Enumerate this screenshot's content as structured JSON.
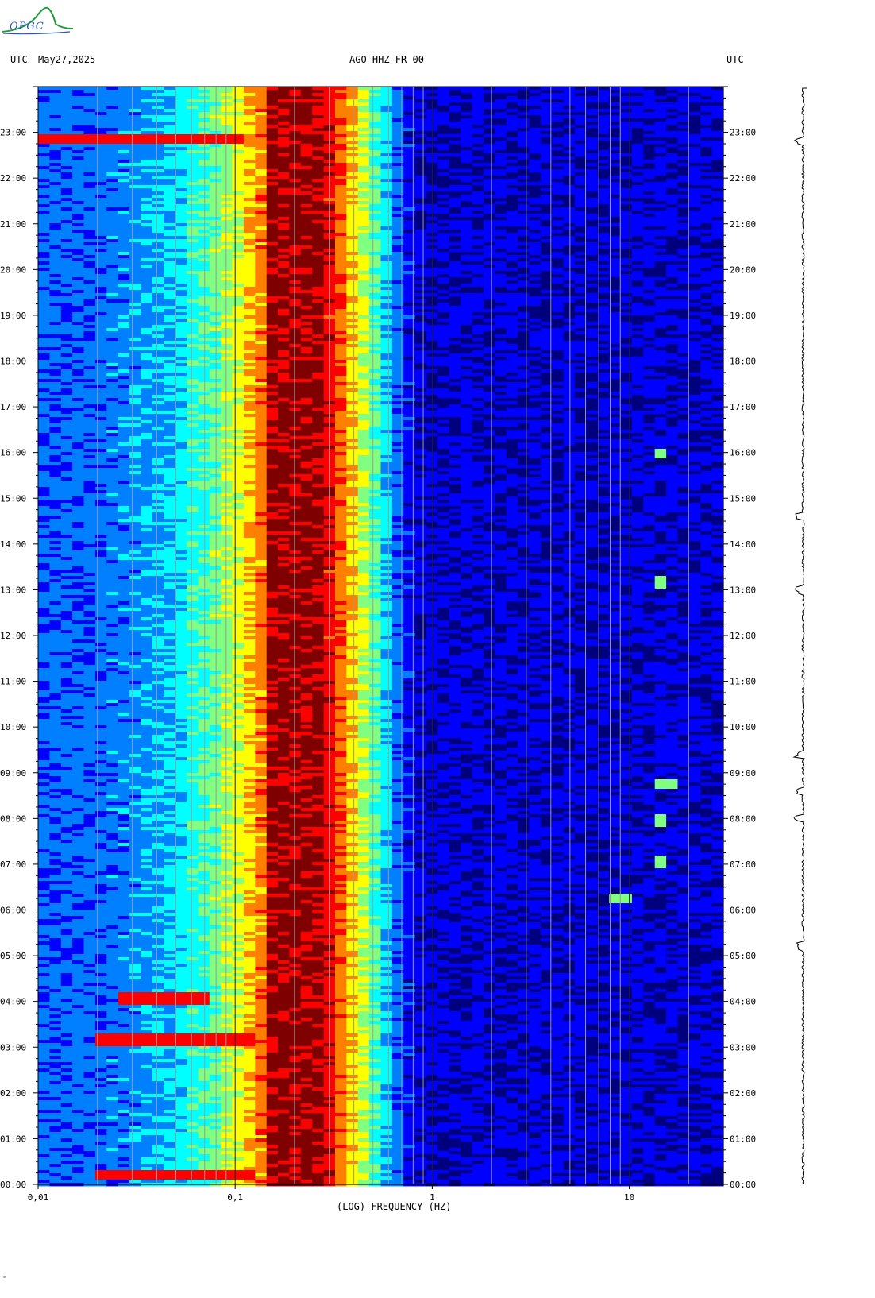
{
  "logo": {
    "text": "OPGC",
    "icon": "opgc-volcano-logo-icon",
    "colors": {
      "green": "#1f9a3a",
      "blue": "#2a57b0"
    }
  },
  "header": {
    "left_utc": "UTC",
    "date": "May27,2025",
    "station": "AGO HHZ FR 00",
    "right_utc": "UTC"
  },
  "footer_mark": "ᵃ",
  "chart_data": {
    "type": "heatmap",
    "title": "AGO HHZ FR 00",
    "xlabel": "(LOG) FREQUENCY (HZ)",
    "x_scale": "log",
    "xlim": [
      0.01,
      30
    ],
    "x_ticks": [
      {
        "value": 0.01,
        "label": "0,01"
      },
      {
        "value": 0.1,
        "label": "0,1"
      },
      {
        "value": 1,
        "label": "1"
      },
      {
        "value": 10,
        "label": "10"
      }
    ],
    "ylim_hours": [
      0,
      24
    ],
    "y_ticks": [
      "00:00",
      "01:00",
      "02:00",
      "03:00",
      "04:00",
      "05:00",
      "06:00",
      "07:00",
      "08:00",
      "09:00",
      "10:00",
      "11:00",
      "12:00",
      "13:00",
      "14:00",
      "15:00",
      "16:00",
      "17:00",
      "18:00",
      "19:00",
      "20:00",
      "21:00",
      "22:00",
      "23:00"
    ],
    "grid": true,
    "colormap": [
      "#00007f",
      "#0000ff",
      "#0080ff",
      "#00ffff",
      "#80ff80",
      "#ffff00",
      "#ff8000",
      "#ff0000",
      "#7f0000"
    ],
    "microseism_peak_hz": [
      0.14,
      0.28
    ],
    "events": [
      {
        "hour": 0.25,
        "band_hz": [
          0.02,
          0.12
        ],
        "label": "event"
      },
      {
        "hour": 3.2,
        "band_hz": [
          0.02,
          0.12
        ],
        "label": "event"
      },
      {
        "hour": 4.1,
        "band_hz": [
          0.025,
          0.07
        ],
        "label": "event"
      },
      {
        "hour": 22.9,
        "band_hz": [
          0.01,
          0.11
        ],
        "label": "event"
      },
      {
        "hour": 6.3,
        "band_hz": [
          8,
          10
        ],
        "label": "local"
      },
      {
        "hour": 7.1,
        "band_hz": [
          13,
          16
        ],
        "label": "local"
      },
      {
        "hour": 8.0,
        "band_hz": [
          13,
          16
        ],
        "label": "local"
      },
      {
        "hour": 8.8,
        "band_hz": [
          13,
          17
        ],
        "label": "local"
      },
      {
        "hour": 13.2,
        "band_hz": [
          13,
          16
        ],
        "label": "local"
      },
      {
        "hour": 16.0,
        "band_hz": [
          14,
          16
        ],
        "label": "local"
      }
    ]
  },
  "seismogram": {
    "color": "#000000",
    "spikes_hours": [
      5.2,
      8.0,
      8.6,
      9.4,
      13.0,
      14.6,
      22.8
    ]
  }
}
